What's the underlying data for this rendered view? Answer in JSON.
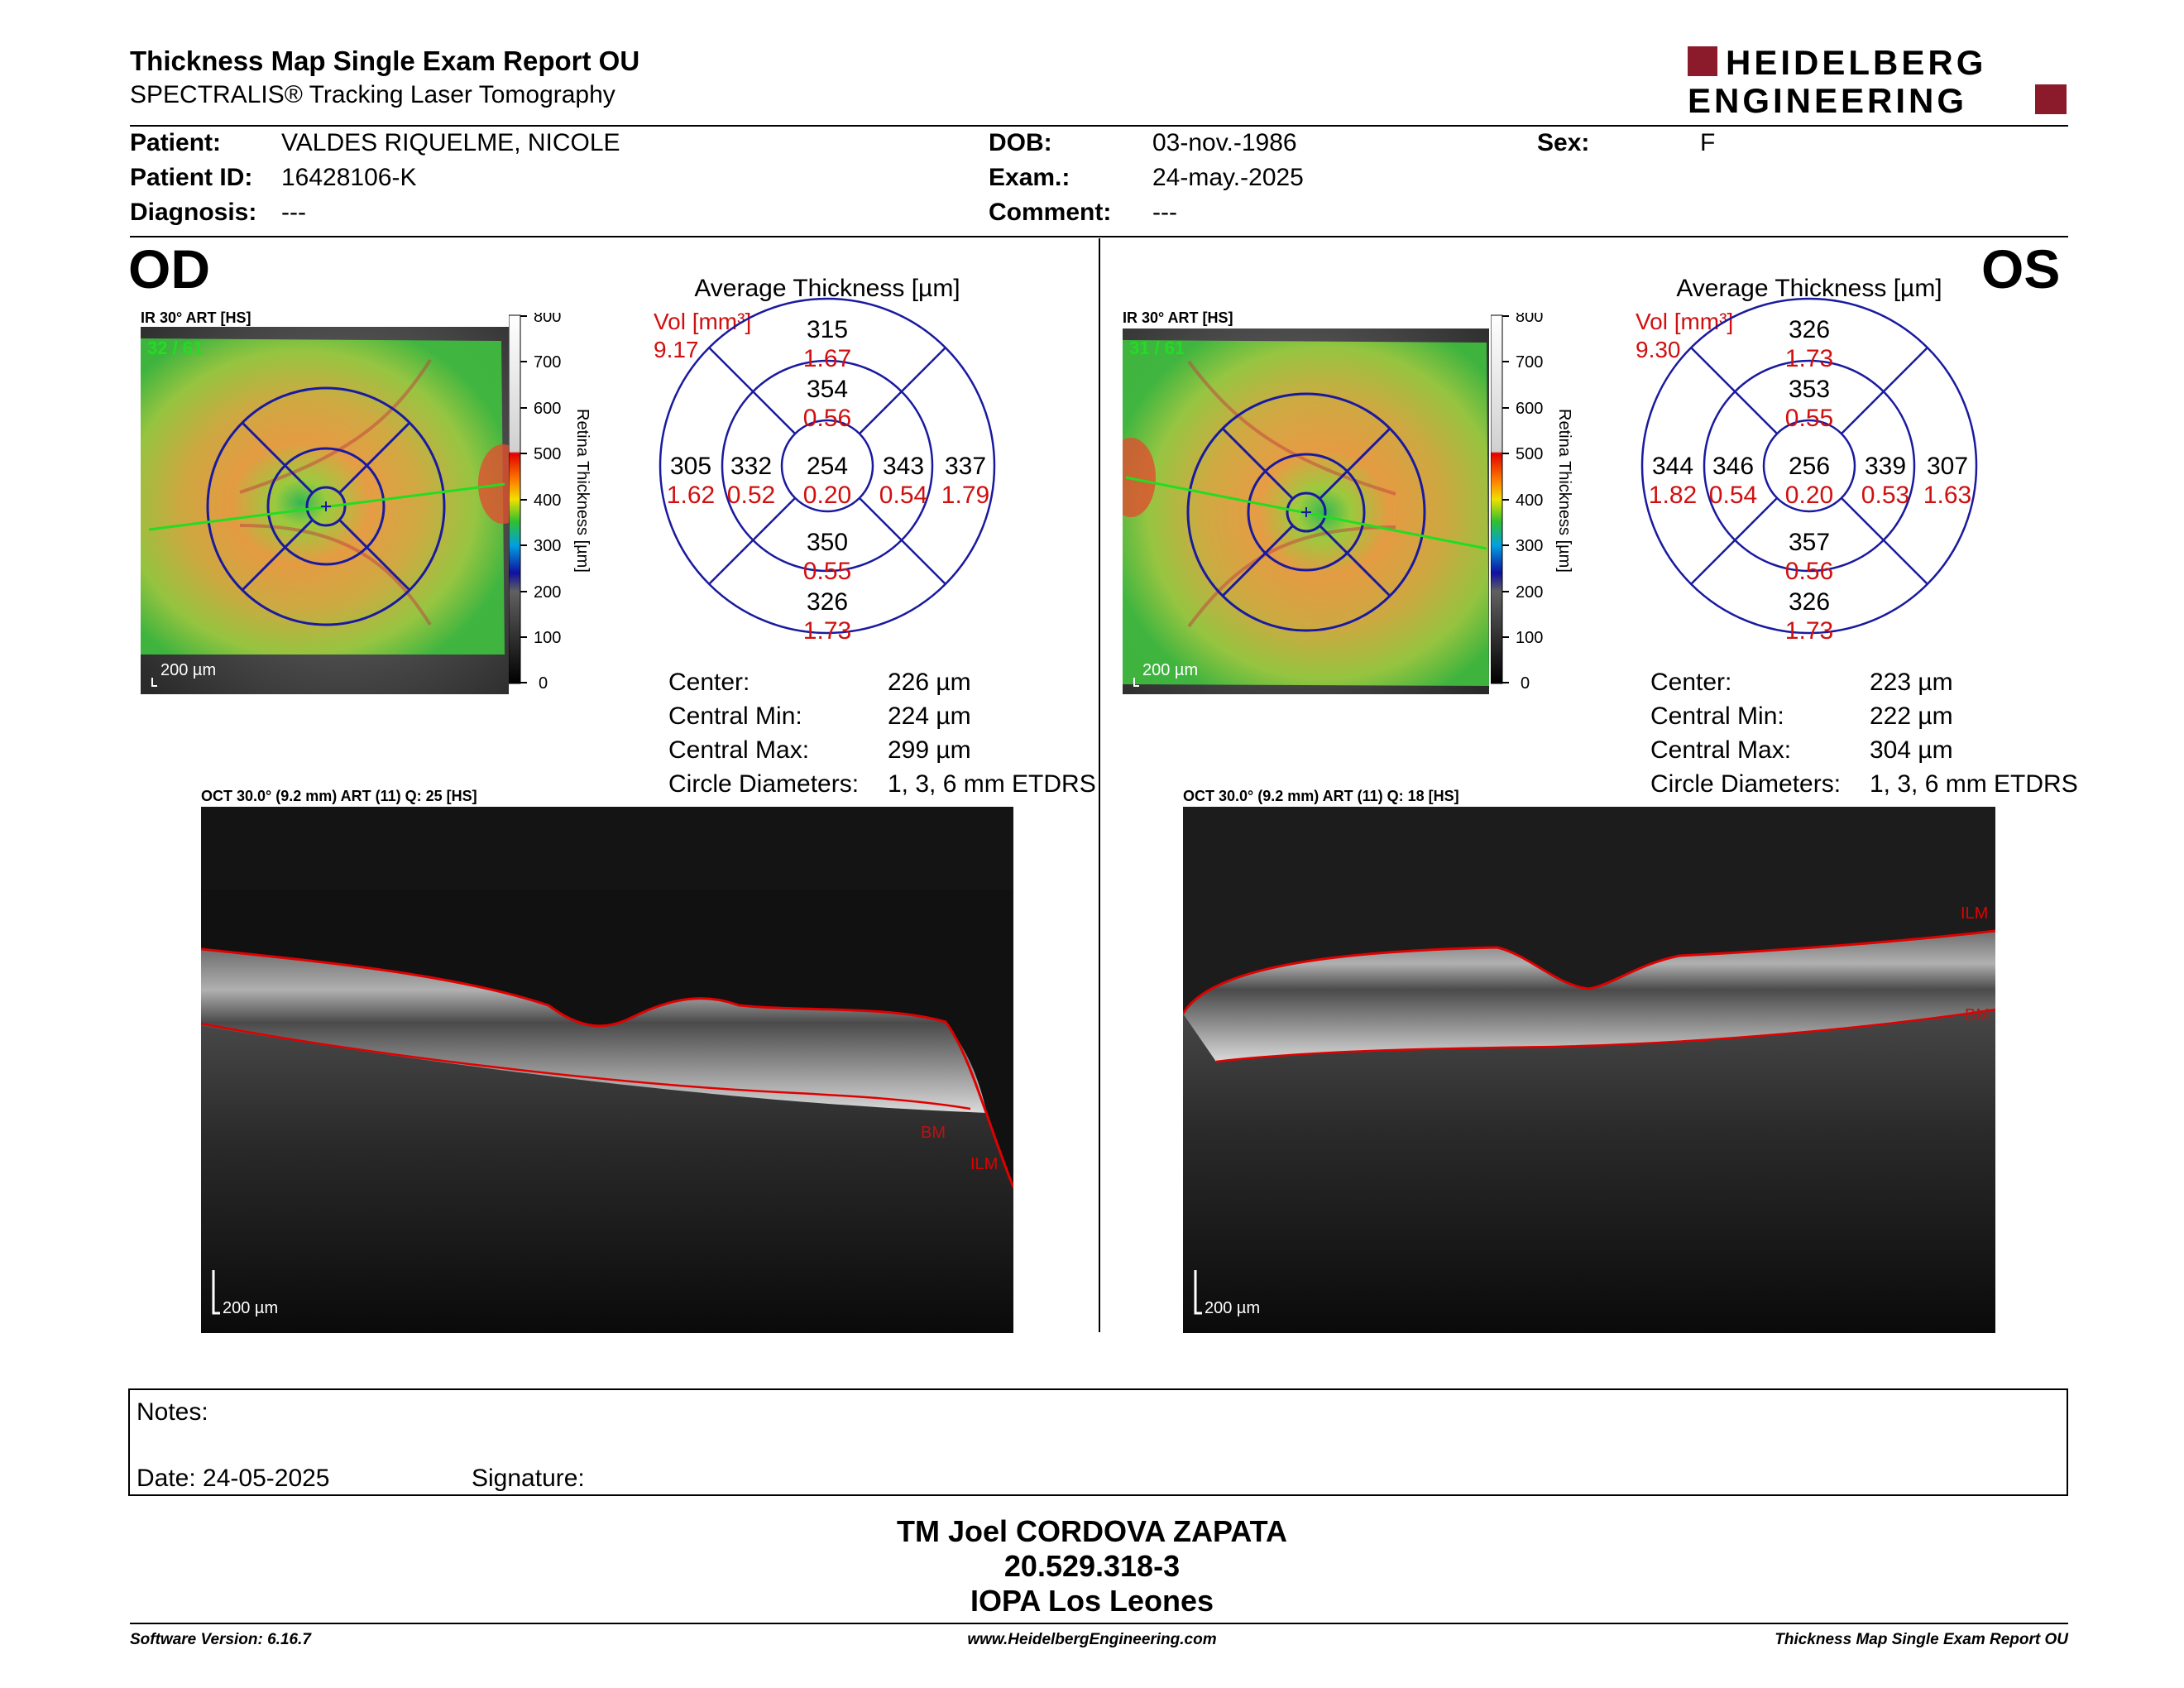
{
  "header": {
    "title": "Thickness Map Single Exam Report OU",
    "subtitle": "SPECTRALIS® Tracking Laser Tomography",
    "logo_line1": "HEIDELBERG",
    "logo_line2": "ENGINEERING",
    "brand_color": "#8b1a2b"
  },
  "patient": {
    "patient_label": "Patient:",
    "patient_value": "VALDES RIQUELME, NICOLE",
    "patient_id_label": "Patient ID:",
    "patient_id_value": "16428106-K",
    "diagnosis_label": "Diagnosis:",
    "diagnosis_value": "---",
    "dob_label": "DOB:",
    "dob_value": "03-nov.-1986",
    "exam_label": "Exam.:",
    "exam_value": "24-may.-2025",
    "comment_label": "Comment:",
    "comment_value": "---",
    "sex_label": "Sex:",
    "sex_value": "F"
  },
  "od": {
    "eye": "OD",
    "fundus_caption": "IR 30° ART [HS]",
    "frames": "32 / 61",
    "scale_label": "200 µm",
    "colorbar_ticks": [
      "800",
      "700",
      "600",
      "500",
      "400",
      "300",
      "200",
      "100",
      "0"
    ],
    "colorbar_title": "Retina Thickness [µm]",
    "avg_title": "Average Thickness [µm]",
    "vol_label": "Vol [mm³]",
    "vol_total": "9.17",
    "grid": {
      "outer_top": "315",
      "outer_top_vol": "1.67",
      "inner_top": "354",
      "inner_top_vol": "0.56",
      "outer_left": "305",
      "outer_left_vol": "1.62",
      "inner_left": "332",
      "inner_left_vol": "0.52",
      "center": "254",
      "center_vol": "0.20",
      "inner_right": "343",
      "inner_right_vol": "0.54",
      "outer_right": "337",
      "outer_right_vol": "1.79",
      "inner_bottom": "350",
      "inner_bottom_vol": "0.55",
      "outer_bottom": "326",
      "outer_bottom_vol": "1.73"
    },
    "stats": {
      "center_label": "Center:",
      "center_value": "226 µm",
      "min_label": "Central Min:",
      "min_value": "224 µm",
      "max_label": "Central Max:",
      "max_value": "299 µm",
      "diam_label": "Circle Diameters:",
      "diam_value": "1, 3, 6 mm ETDRS"
    },
    "oct_caption": "OCT 30.0° (9.2 mm) ART (11) Q: 25 [HS]",
    "oct_scale": "200 µm",
    "layer_top": "ILM",
    "layer_bottom": "BM"
  },
  "os": {
    "eye": "OS",
    "fundus_caption": "IR 30° ART [HS]",
    "frames": "31 / 61",
    "scale_label": "200 µm",
    "colorbar_ticks": [
      "800",
      "700",
      "600",
      "500",
      "400",
      "300",
      "200",
      "100",
      "0"
    ],
    "colorbar_title": "Retina Thickness [µm]",
    "avg_title": "Average Thickness [µm]",
    "vol_label": "Vol [mm³]",
    "vol_total": "9.30",
    "grid": {
      "outer_top": "326",
      "outer_top_vol": "1.73",
      "inner_top": "353",
      "inner_top_vol": "0.55",
      "outer_left": "344",
      "outer_left_vol": "1.82",
      "inner_left": "346",
      "inner_left_vol": "0.54",
      "center": "256",
      "center_vol": "0.20",
      "inner_right": "339",
      "inner_right_vol": "0.53",
      "outer_right": "307",
      "outer_right_vol": "1.63",
      "inner_bottom": "357",
      "inner_bottom_vol": "0.56",
      "outer_bottom": "326",
      "outer_bottom_vol": "1.73"
    },
    "stats": {
      "center_label": "Center:",
      "center_value": "223 µm",
      "min_label": "Central Min:",
      "min_value": "222 µm",
      "max_label": "Central Max:",
      "max_value": "304 µm",
      "diam_label": "Circle Diameters:",
      "diam_value": "1, 3, 6 mm ETDRS"
    },
    "oct_caption": "OCT 30.0° (9.2 mm) ART (11) Q: 18 [HS]",
    "oct_scale": "200 µm",
    "layer_top": "ILM",
    "layer_bottom": "BM"
  },
  "notes": {
    "notes_label": "Notes:",
    "date_label": "Date: 24-05-2025",
    "signature_label": "Signature:"
  },
  "signatory": {
    "name": "TM Joel CORDOVA ZAPATA",
    "id": "20.529.318-3",
    "institution": "IOPA Los Leones"
  },
  "footer": {
    "version": "Software Version: 6.16.7",
    "website": "www.HeidelbergEngineering.com",
    "report": "Thickness Map Single Exam Report OU"
  },
  "colors": {
    "grid_blue": "#1a1aa0",
    "vol_red": "#d01010",
    "ilm_red": "#e00000",
    "scan_green": "#22dd22"
  }
}
